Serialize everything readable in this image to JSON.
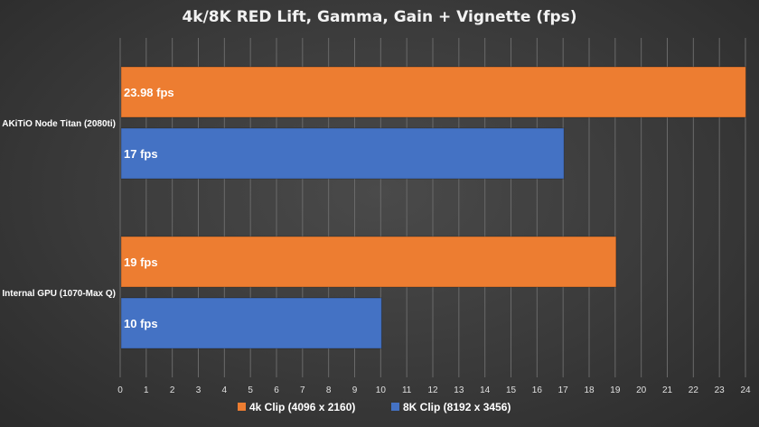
{
  "chart_data": {
    "type": "bar",
    "orientation": "horizontal",
    "title": "4k/8K RED Lift, Gamma, Gain + Vignette (fps)",
    "categories": [
      "AKiTiO Node Titan (2080ti)",
      "Internal GPU (1070-Max Q)"
    ],
    "series": [
      {
        "name": "4k Clip (4096 x 2160)",
        "values": [
          23.98,
          19
        ],
        "labels": [
          "23.98 fps",
          "19 fps"
        ],
        "color": "#ed7d31"
      },
      {
        "name": "8K Clip (8192 x 3456)",
        "values": [
          17,
          10
        ],
        "labels": [
          "17 fps",
          "10 fps"
        ],
        "color": "#4472c4"
      }
    ],
    "xlim": [
      0,
      24
    ],
    "x_ticks": [
      "0",
      "1",
      "2",
      "3",
      "4",
      "5",
      "6",
      "7",
      "8",
      "9",
      "10",
      "11",
      "12",
      "13",
      "14",
      "15",
      "16",
      "17",
      "18",
      "19",
      "20",
      "21",
      "22",
      "23",
      "24"
    ],
    "grid": true,
    "legend_position": "bottom"
  }
}
